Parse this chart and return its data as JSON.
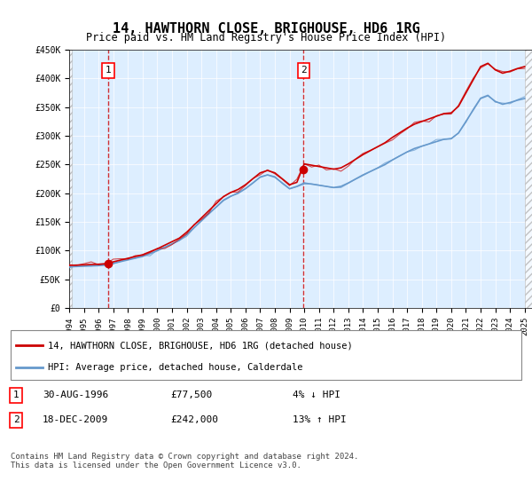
{
  "title": "14, HAWTHORN CLOSE, BRIGHOUSE, HD6 1RG",
  "subtitle": "Price paid vs. HM Land Registry's House Price Index (HPI)",
  "sale1_date": 1996.66,
  "sale1_price": 77500,
  "sale1_label": "30-AUG-1996",
  "sale2_date": 2009.96,
  "sale2_price": 242000,
  "sale2_label": "18-DEC-2009",
  "ylim": [
    0,
    450000
  ],
  "yticks": [
    0,
    50000,
    100000,
    150000,
    200000,
    250000,
    300000,
    350000,
    400000,
    450000
  ],
  "xlim": [
    1994.0,
    2025.5
  ],
  "legend1": "14, HAWTHORN CLOSE, BRIGHOUSE, HD6 1RG (detached house)",
  "legend2": "HPI: Average price, detached house, Calderdale",
  "table_row1": "30-AUG-1996          £77,500          4% ↓ HPI",
  "table_row2": "18-DEC-2009          £242,000        13% ↑ HPI",
  "footer": "Contains HM Land Registry data © Crown copyright and database right 2024.\nThis data is licensed under the Open Government Licence v3.0.",
  "hpi_color": "#6699cc",
  "price_color": "#cc0000",
  "bg_color": "#ddeeff",
  "hatch_color": "#cccccc"
}
